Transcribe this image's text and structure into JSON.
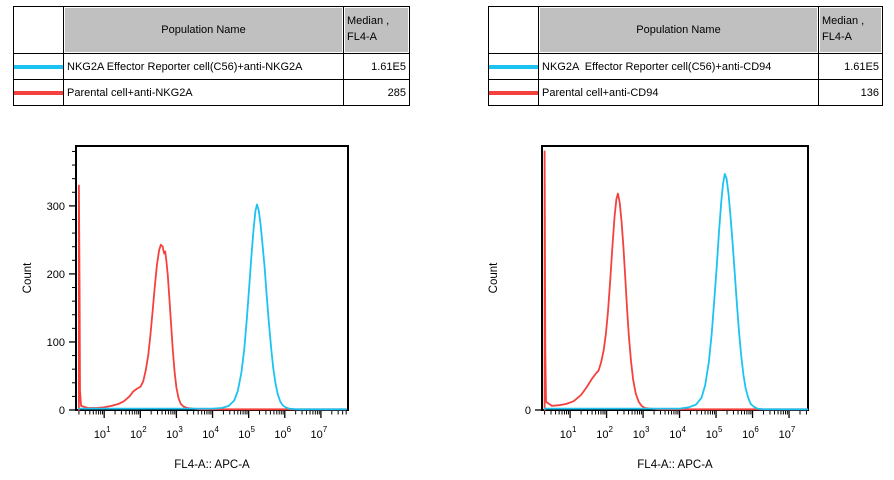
{
  "colors": {
    "cyan": "#1cc3f2",
    "red": "#f5413d",
    "header_bg": "#c0c0c0",
    "border": "#000000",
    "background": "#ffffff"
  },
  "panels": [
    {
      "table": {
        "header": {
          "population": "Population Name",
          "median_line1": "Median ,",
          "median_line2": "FL4-A"
        },
        "rows": [
          {
            "color": "cyan",
            "name": "NKG2A Effector Reporter cell(C56)+anti-NKG2A",
            "median": "1.61E5"
          },
          {
            "color": "red",
            "name": "Parental cell+anti-NKG2A",
            "median": "285"
          }
        ]
      }
    },
    {
      "table": {
        "header": {
          "population": "Population Name",
          "median_line1": "Median ,",
          "median_line2": "FL4-A"
        },
        "rows": [
          {
            "color": "cyan",
            "name": "NKG2A  Effector Reporter cell(C56)+anti-CD94",
            "median": "1.61E5"
          },
          {
            "color": "red",
            "name": "Parental cell+anti-CD94",
            "median": "136"
          }
        ]
      }
    }
  ],
  "chart_data": [
    {
      "type": "line",
      "xlabel": "FL4-A:: APC-A",
      "ylabel": "Count",
      "x_scale": "log",
      "x_tick_base": "10",
      "x_range_exp": [
        0.22,
        7.75
      ],
      "x_major_tick_exponents": [
        1,
        2,
        3,
        4,
        5,
        6,
        7
      ],
      "ylim": [
        0,
        388
      ],
      "y_major_ticks": [
        0,
        100,
        200,
        300
      ],
      "y_minor_step": 20,
      "grid": false,
      "series": [
        {
          "name": "Parental cell+anti-NKG2A",
          "color": "red",
          "median": "285",
          "points": [
            [
              0.3,
              0
            ],
            [
              0.3,
              330
            ],
            [
              0.32,
              175
            ],
            [
              0.33,
              28
            ],
            [
              0.36,
              6
            ],
            [
              0.55,
              3
            ],
            [
              0.8,
              3
            ],
            [
              1.0,
              4
            ],
            [
              1.2,
              6
            ],
            [
              1.4,
              9
            ],
            [
              1.55,
              13
            ],
            [
              1.7,
              20
            ],
            [
              1.8,
              27
            ],
            [
              1.9,
              31
            ],
            [
              2.0,
              34
            ],
            [
              2.08,
              42
            ],
            [
              2.15,
              58
            ],
            [
              2.22,
              80
            ],
            [
              2.28,
              110
            ],
            [
              2.34,
              145
            ],
            [
              2.4,
              180
            ],
            [
              2.46,
              213
            ],
            [
              2.52,
              235
            ],
            [
              2.57,
              243
            ],
            [
              2.62,
              240
            ],
            [
              2.66,
              230
            ],
            [
              2.69,
              233
            ],
            [
              2.72,
              220
            ],
            [
              2.76,
              198
            ],
            [
              2.8,
              168
            ],
            [
              2.85,
              128
            ],
            [
              2.9,
              88
            ],
            [
              2.95,
              56
            ],
            [
              3.0,
              33
            ],
            [
              3.06,
              17
            ],
            [
              3.12,
              9
            ],
            [
              3.2,
              5
            ],
            [
              3.3,
              3
            ],
            [
              3.45,
              2
            ],
            [
              3.7,
              1
            ],
            [
              4.2,
              1
            ],
            [
              5.0,
              1
            ],
            [
              6.0,
              1
            ],
            [
              7.0,
              1
            ],
            [
              7.7,
              1
            ]
          ]
        },
        {
          "name": "NKG2A Effector Reporter cell(C56)+anti-NKG2A",
          "color": "cyan",
          "median": "1.61E5",
          "points": [
            [
              0.3,
              2
            ],
            [
              1.5,
              2
            ],
            [
              3.0,
              2
            ],
            [
              4.0,
              2
            ],
            [
              4.25,
              3
            ],
            [
              4.45,
              6
            ],
            [
              4.6,
              14
            ],
            [
              4.7,
              28
            ],
            [
              4.8,
              55
            ],
            [
              4.88,
              90
            ],
            [
              4.95,
              135
            ],
            [
              5.02,
              185
            ],
            [
              5.08,
              230
            ],
            [
              5.14,
              268
            ],
            [
              5.19,
              293
            ],
            [
              5.23,
              302
            ],
            [
              5.28,
              293
            ],
            [
              5.33,
              272
            ],
            [
              5.38,
              245
            ],
            [
              5.44,
              210
            ],
            [
              5.5,
              168
            ],
            [
              5.56,
              128
            ],
            [
              5.62,
              92
            ],
            [
              5.68,
              62
            ],
            [
              5.74,
              40
            ],
            [
              5.8,
              24
            ],
            [
              5.87,
              13
            ],
            [
              5.94,
              7
            ],
            [
              6.02,
              4
            ],
            [
              6.12,
              2
            ],
            [
              6.3,
              1
            ],
            [
              6.8,
              1
            ],
            [
              7.3,
              1
            ],
            [
              7.7,
              1
            ]
          ]
        }
      ]
    },
    {
      "type": "line",
      "xlabel": "FL4-A:: APC-A",
      "ylabel": "Count",
      "x_scale": "log",
      "x_tick_base": "10",
      "x_range_exp": [
        0.23,
        7.52
      ],
      "x_major_tick_exponents": [
        1,
        2,
        3,
        4,
        5,
        6,
        7
      ],
      "ylim": [
        0,
        388
      ],
      "y_major_ticks": [
        0
      ],
      "y_minor_step": 0,
      "grid": false,
      "series": [
        {
          "name": "Parental cell+anti-CD94",
          "color": "red",
          "median": "136",
          "points": [
            [
              0.3,
              0
            ],
            [
              0.3,
              380
            ],
            [
              0.32,
              90
            ],
            [
              0.34,
              12
            ],
            [
              0.5,
              6
            ],
            [
              0.7,
              7
            ],
            [
              0.9,
              9
            ],
            [
              1.1,
              13
            ],
            [
              1.3,
              22
            ],
            [
              1.45,
              33
            ],
            [
              1.6,
              46
            ],
            [
              1.7,
              53
            ],
            [
              1.78,
              58
            ],
            [
              1.85,
              70
            ],
            [
              1.92,
              88
            ],
            [
              1.98,
              112
            ],
            [
              2.04,
              145
            ],
            [
              2.1,
              190
            ],
            [
              2.16,
              240
            ],
            [
              2.22,
              285
            ],
            [
              2.27,
              310
            ],
            [
              2.31,
              318
            ],
            [
              2.36,
              305
            ],
            [
              2.41,
              278
            ],
            [
              2.46,
              240
            ],
            [
              2.51,
              196
            ],
            [
              2.56,
              150
            ],
            [
              2.61,
              110
            ],
            [
              2.67,
              72
            ],
            [
              2.73,
              44
            ],
            [
              2.8,
              24
            ],
            [
              2.88,
              12
            ],
            [
              2.96,
              6
            ],
            [
              3.05,
              3
            ],
            [
              3.2,
              2
            ],
            [
              3.5,
              1
            ],
            [
              4.0,
              1
            ],
            [
              5.0,
              1
            ],
            [
              6.0,
              1
            ],
            [
              7.0,
              1
            ],
            [
              7.5,
              1
            ]
          ]
        },
        {
          "name": "NKG2A  Effector Reporter cell(C56)+anti-CD94",
          "color": "cyan",
          "median": "1.61E5",
          "points": [
            [
              0.3,
              2
            ],
            [
              1.5,
              2
            ],
            [
              3.0,
              2
            ],
            [
              4.0,
              2
            ],
            [
              4.25,
              4
            ],
            [
              4.45,
              8
            ],
            [
              4.6,
              18
            ],
            [
              4.7,
              36
            ],
            [
              4.8,
              70
            ],
            [
              4.88,
              112
            ],
            [
              4.95,
              160
            ],
            [
              5.02,
              212
            ],
            [
              5.08,
              262
            ],
            [
              5.14,
              305
            ],
            [
              5.19,
              332
            ],
            [
              5.24,
              347
            ],
            [
              5.29,
              340
            ],
            [
              5.34,
              318
            ],
            [
              5.39,
              288
            ],
            [
              5.45,
              248
            ],
            [
              5.51,
              202
            ],
            [
              5.57,
              158
            ],
            [
              5.63,
              115
            ],
            [
              5.69,
              80
            ],
            [
              5.75,
              52
            ],
            [
              5.81,
              32
            ],
            [
              5.88,
              18
            ],
            [
              5.95,
              9
            ],
            [
              6.03,
              5
            ],
            [
              6.13,
              2
            ],
            [
              6.3,
              1
            ],
            [
              6.8,
              1
            ],
            [
              7.2,
              1
            ],
            [
              7.5,
              1
            ]
          ]
        }
      ]
    }
  ]
}
